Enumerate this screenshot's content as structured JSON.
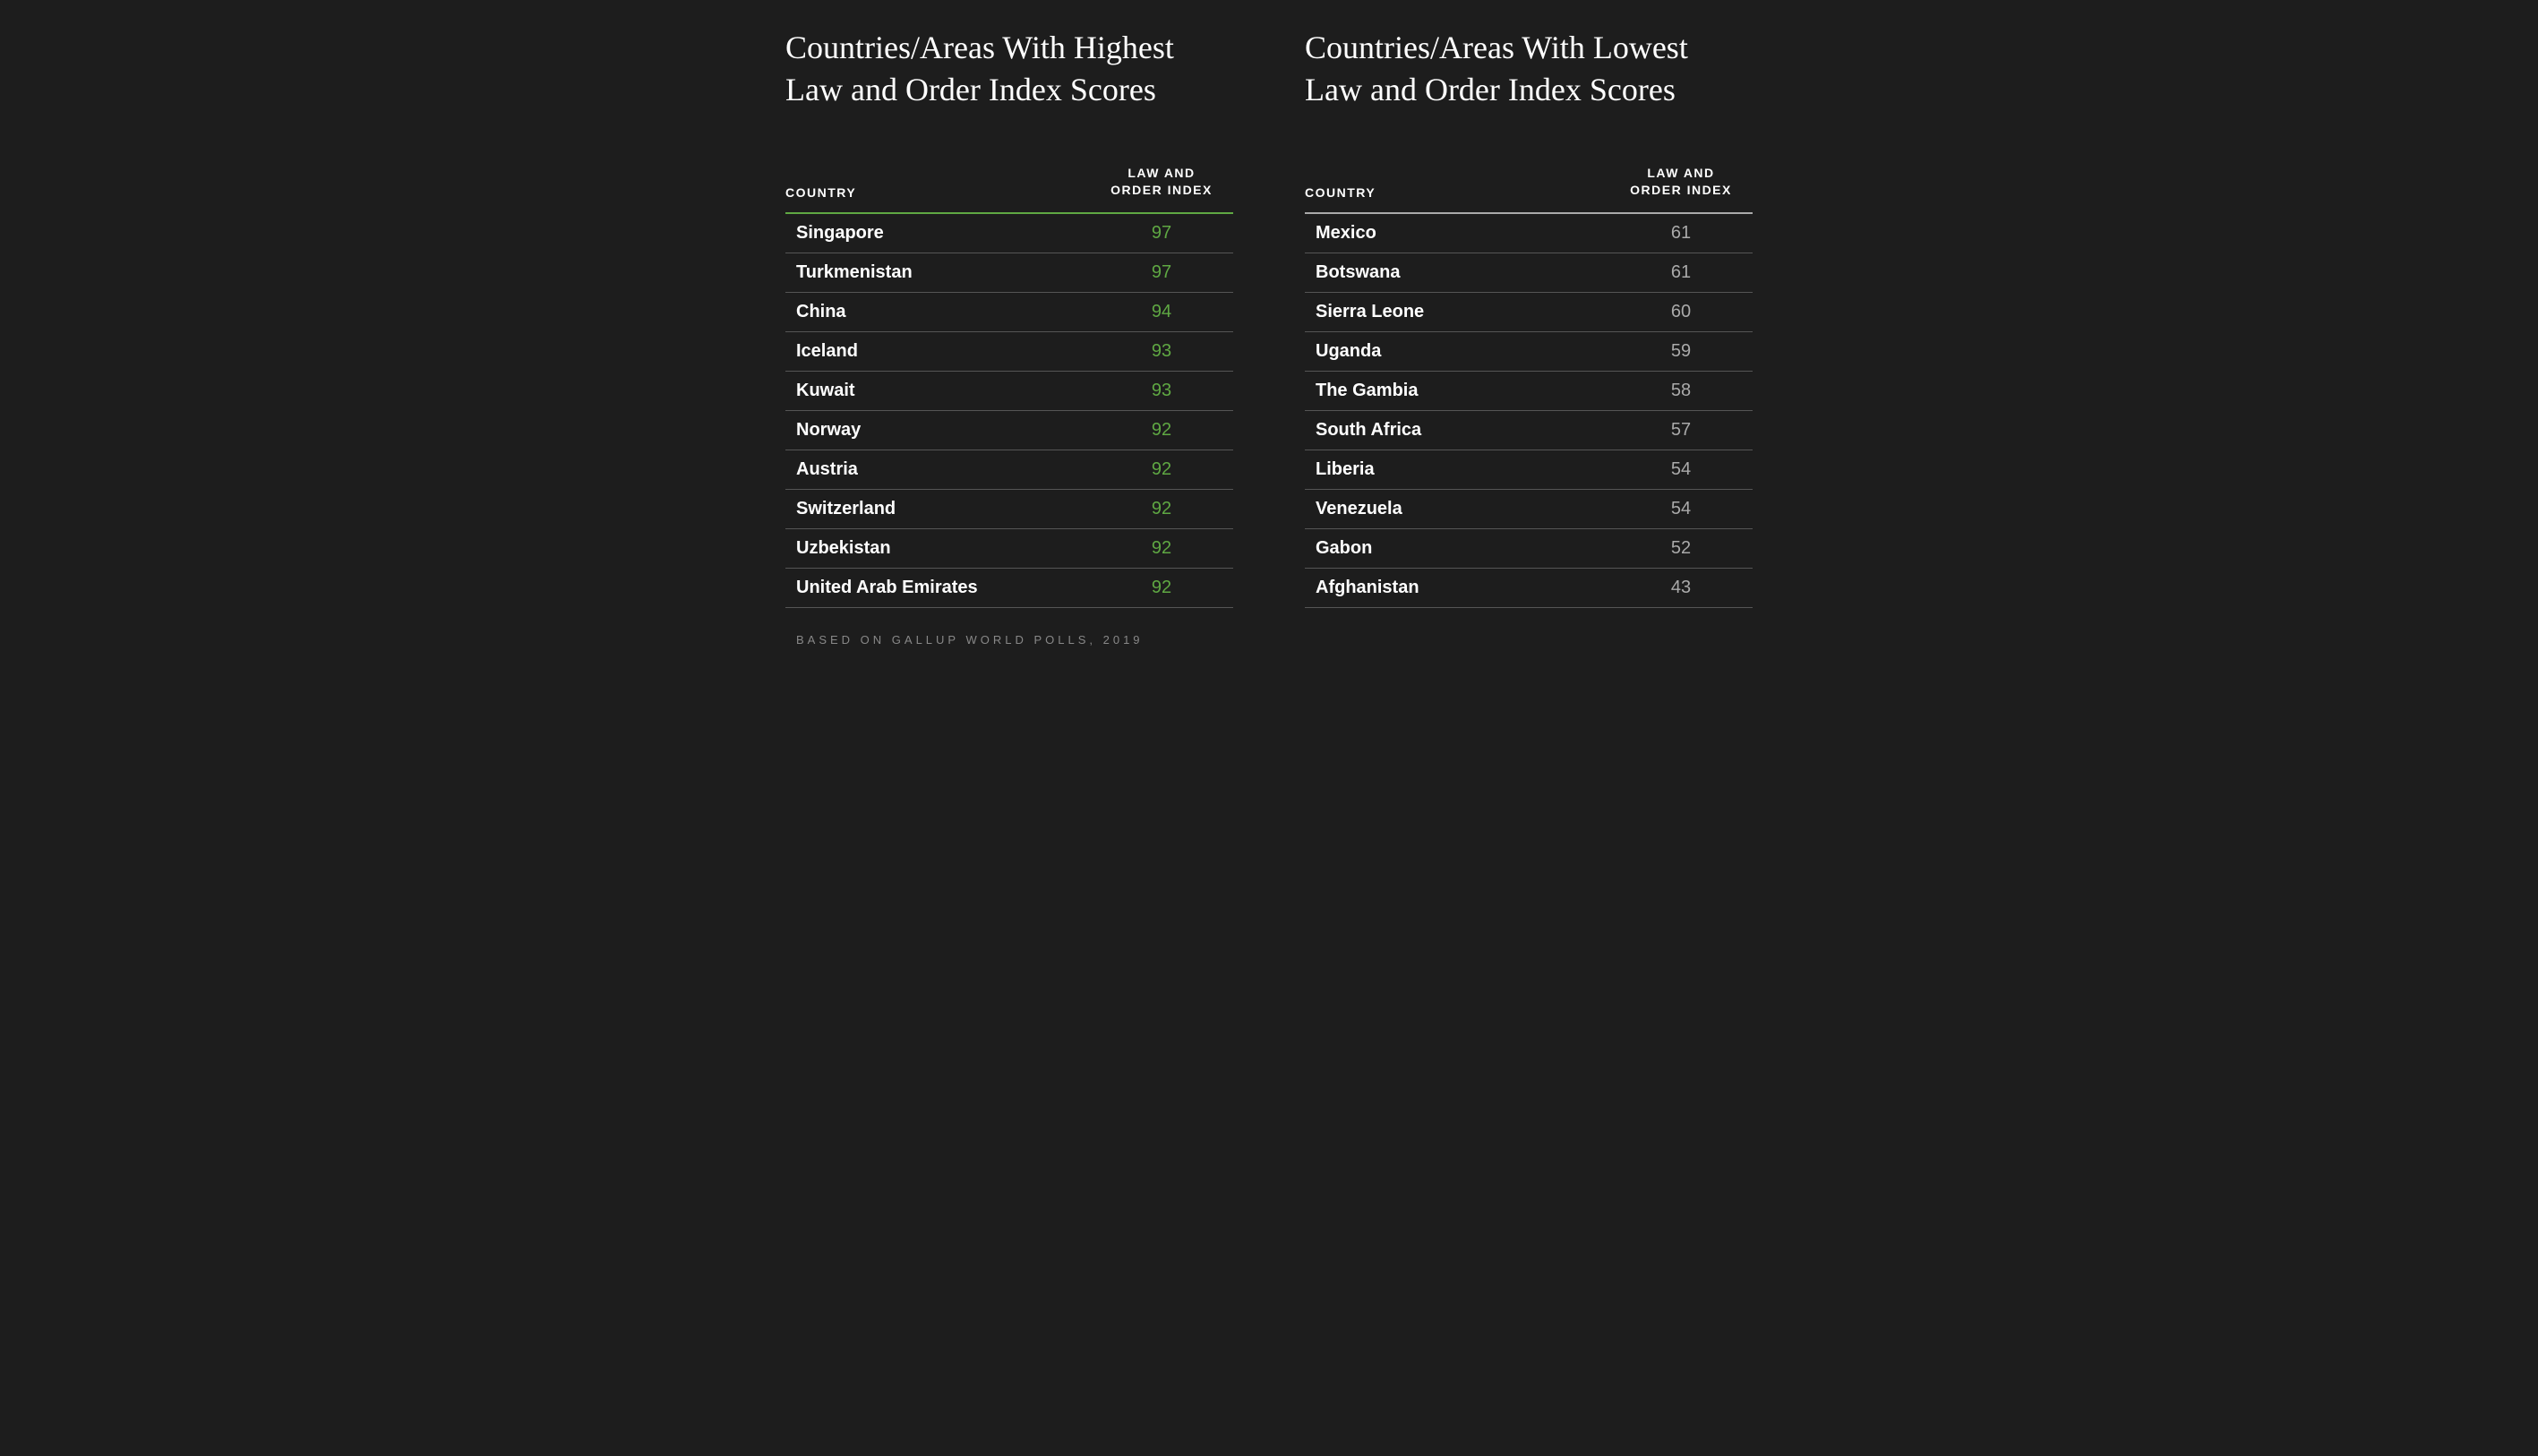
{
  "background_color": "#1d1d1d",
  "text_color": "#ffffff",
  "row_border_color": "#555555",
  "footer_text": "BASED ON GALLUP WORLD POLLS, 2019",
  "footer_color": "#888888",
  "column_headers": {
    "country": "COUNTRY",
    "index_line1": "LAW AND",
    "index_line2": "ORDER INDEX"
  },
  "highest": {
    "title": "Countries/Areas With Highest Law and Order Index Scores",
    "header_border_color": "#5fa843",
    "value_color": "#5fa843",
    "rows": [
      {
        "country": "Singapore",
        "index": 97
      },
      {
        "country": "Turkmenistan",
        "index": 97
      },
      {
        "country": "China",
        "index": 94
      },
      {
        "country": "Iceland",
        "index": 93
      },
      {
        "country": "Kuwait",
        "index": 93
      },
      {
        "country": "Norway",
        "index": 92
      },
      {
        "country": "Austria",
        "index": 92
      },
      {
        "country": "Switzerland",
        "index": 92
      },
      {
        "country": "Uzbekistan",
        "index": 92
      },
      {
        "country": "United Arab Emirates",
        "index": 92
      }
    ]
  },
  "lowest": {
    "title": "Countries/Areas With Lowest Law and Order Index Scores",
    "header_border_color": "#aaaaaa",
    "value_color": "#aaaaaa",
    "rows": [
      {
        "country": "Mexico",
        "index": 61
      },
      {
        "country": "Botswana",
        "index": 61
      },
      {
        "country": "Sierra Leone",
        "index": 60
      },
      {
        "country": "Uganda",
        "index": 59
      },
      {
        "country": "The Gambia",
        "index": 58
      },
      {
        "country": "South Africa",
        "index": 57
      },
      {
        "country": "Liberia",
        "index": 54
      },
      {
        "country": "Venezuela",
        "index": 54
      },
      {
        "country": "Gabon",
        "index": 52
      },
      {
        "country": "Afghanistan",
        "index": 43
      }
    ]
  }
}
